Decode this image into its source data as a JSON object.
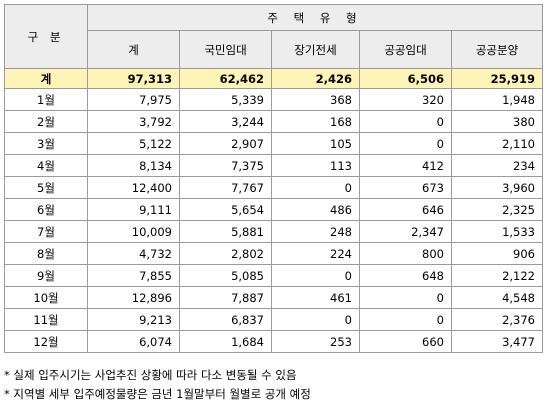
{
  "table": {
    "row_header": "구 분",
    "group_header": "주 택 유 형",
    "columns": [
      "계",
      "국민임대",
      "장기전세",
      "공공임대",
      "공공분양"
    ],
    "total": {
      "label": "계",
      "values": [
        "97,313",
        "62,462",
        "2,426",
        "6,506",
        "25,919"
      ]
    },
    "rows": [
      {
        "label": "1월",
        "values": [
          "7,975",
          "5,339",
          "368",
          "320",
          "1,948"
        ]
      },
      {
        "label": "2월",
        "values": [
          "3,792",
          "3,244",
          "168",
          "0",
          "380"
        ]
      },
      {
        "label": "3월",
        "values": [
          "5,122",
          "2,907",
          "105",
          "0",
          "2,110"
        ]
      },
      {
        "label": "4월",
        "values": [
          "8,134",
          "7,375",
          "113",
          "412",
          "234"
        ]
      },
      {
        "label": "5월",
        "values": [
          "12,400",
          "7,767",
          "0",
          "673",
          "3,960"
        ]
      },
      {
        "label": "6월",
        "values": [
          "9,111",
          "5,654",
          "486",
          "646",
          "2,325"
        ]
      },
      {
        "label": "7월",
        "values": [
          "10,009",
          "5,881",
          "248",
          "2,347",
          "1,533"
        ]
      },
      {
        "label": "8월",
        "values": [
          "4,732",
          "2,802",
          "224",
          "800",
          "906"
        ]
      },
      {
        "label": "9월",
        "values": [
          "7,855",
          "5,085",
          "0",
          "648",
          "2,122"
        ]
      },
      {
        "label": "10월",
        "values": [
          "12,896",
          "7,887",
          "461",
          "0",
          "4,548"
        ]
      },
      {
        "label": "11월",
        "values": [
          "9,213",
          "6,837",
          "0",
          "0",
          "2,376"
        ]
      },
      {
        "label": "12월",
        "values": [
          "6,074",
          "1,684",
          "253",
          "660",
          "3,477"
        ]
      }
    ]
  },
  "notes": [
    "* 실제 입주시기는 사업추진 상황에 따라 다소 변동될 수 있음",
    "* 지역별 세부 입주예정물량은 금년 1월말부터 월별로 공개 예정"
  ]
}
